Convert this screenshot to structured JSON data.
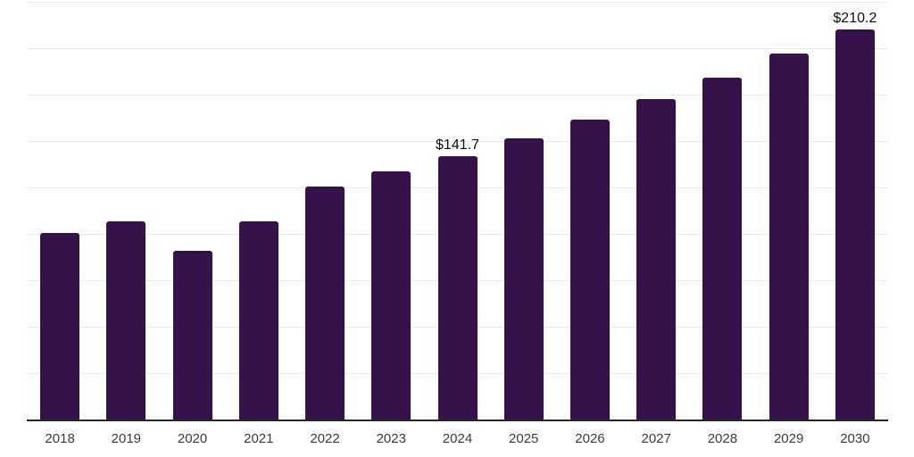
{
  "chart_data": {
    "type": "bar",
    "title": "",
    "xlabel": "",
    "ylabel": "",
    "categories": [
      "2018",
      "2019",
      "2020",
      "2021",
      "2022",
      "2023",
      "2024",
      "2025",
      "2026",
      "2027",
      "2028",
      "2029",
      "2030"
    ],
    "values": [
      100.3,
      106.6,
      90.7,
      106.9,
      125.7,
      133.8,
      141.7,
      151.4,
      161.6,
      172.7,
      184.2,
      196.9,
      210.2
    ],
    "data_labels": [
      {
        "index": 6,
        "text": "$141.7"
      },
      {
        "index": 12,
        "text": "$210.2"
      }
    ],
    "ylim": [
      0,
      225
    ],
    "grid_step": 25,
    "grid": "horizontal-only",
    "y_tick_labels_visible": false,
    "legend": "none",
    "bar_color": "#36124B",
    "axis_color": "#262626",
    "grid_color": "#ececec",
    "tick_label_color": "#3b3b3b",
    "data_label_color": "#0d0d0d"
  }
}
